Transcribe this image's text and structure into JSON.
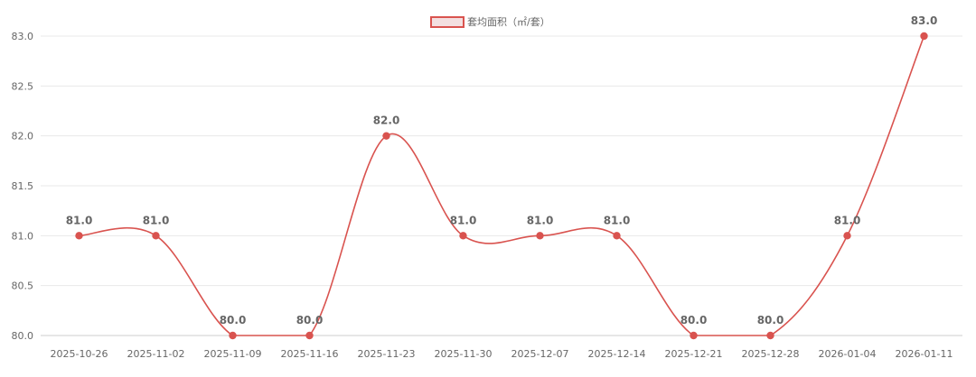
{
  "chart_data": {
    "type": "line",
    "categories": [
      "2025-10-26",
      "2025-11-02",
      "2025-11-09",
      "2025-11-16",
      "2025-11-23",
      "2025-11-30",
      "2025-12-07",
      "2025-12-14",
      "2025-12-21",
      "2025-12-28",
      "2026-01-04",
      "2026-01-11"
    ],
    "series": [
      {
        "name": "套均面积（㎡/套）",
        "values": [
          81.0,
          81.0,
          80.0,
          80.0,
          82.0,
          81.0,
          81.0,
          81.0,
          80.0,
          80.0,
          81.0,
          83.0
        ]
      }
    ],
    "data_labels": [
      "81.0",
      "81.0",
      "80.0",
      "80.0",
      "82.0",
      "81.0",
      "81.0",
      "81.0",
      "80.0",
      "80.0",
      "81.0",
      "83.0"
    ],
    "yticks": [
      "80.0",
      "80.5",
      "81.0",
      "81.5",
      "82.0",
      "82.5",
      "83.0"
    ],
    "ylim": [
      80.0,
      83.0
    ],
    "grid": true,
    "legend_position": "top-center",
    "colors": {
      "line": "#d9534f",
      "legend_fill": "#f3dfe0",
      "grid": "#e8e8e8",
      "axis": "#cccccc",
      "text": "#666666"
    }
  }
}
